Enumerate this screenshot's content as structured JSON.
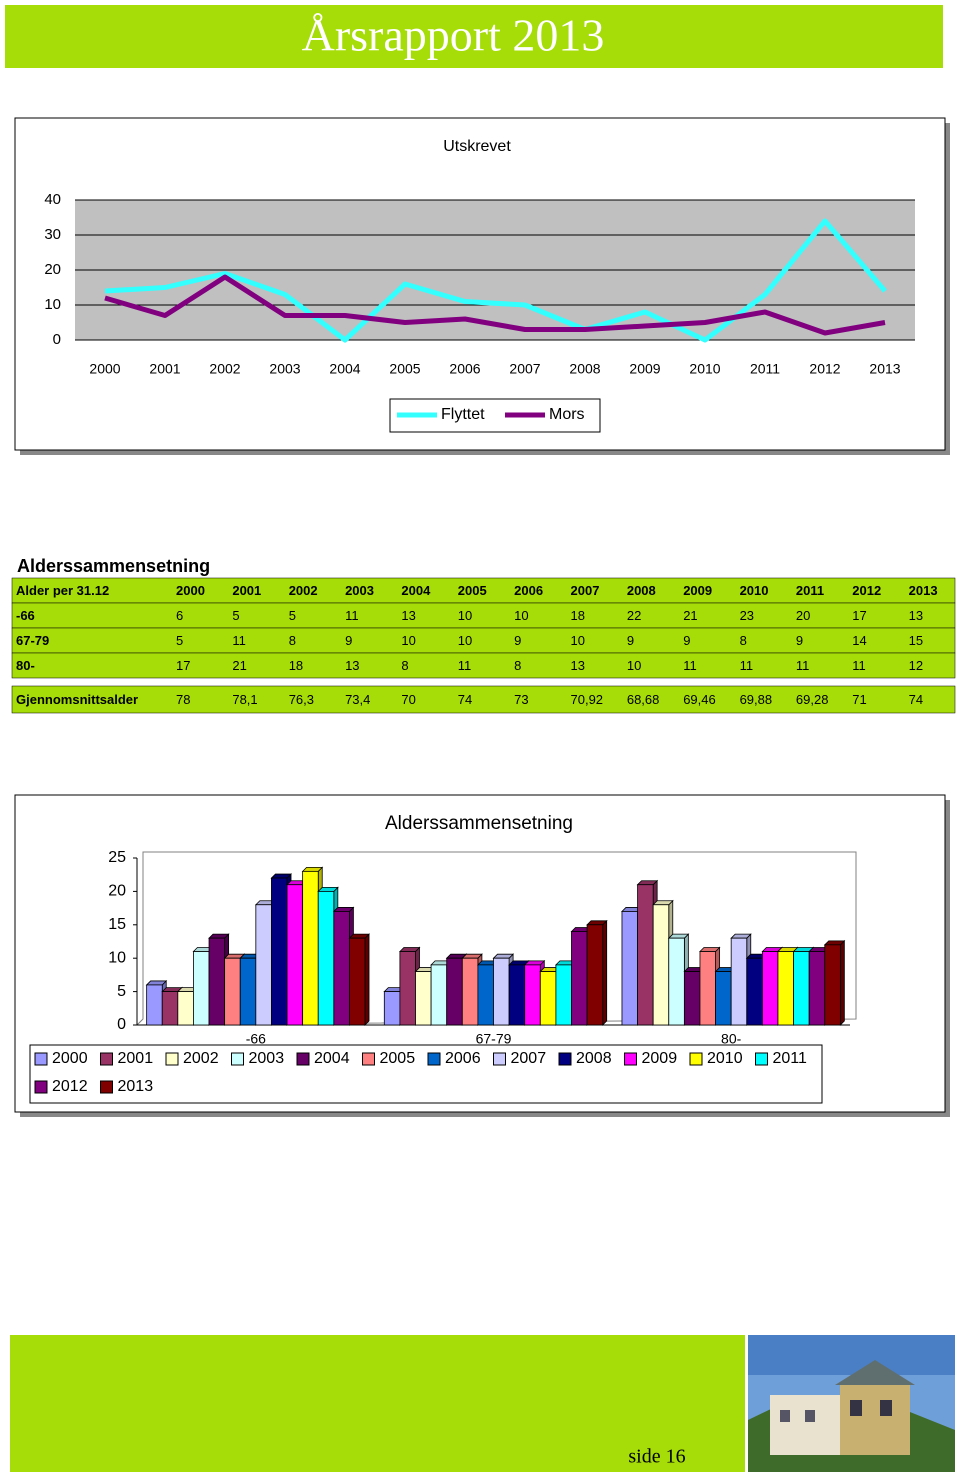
{
  "header": {
    "title": "Årsrapport 2013"
  },
  "chart_data": [
    {
      "type": "line",
      "title": "Utskrevet",
      "categories": [
        "2000",
        "2001",
        "2002",
        "2003",
        "2004",
        "2005",
        "2006",
        "2007",
        "2008",
        "2009",
        "2010",
        "2011",
        "2012",
        "2013"
      ],
      "series": [
        {
          "name": "Flyttet",
          "color": "#33ffff",
          "values": [
            14,
            15,
            19,
            13,
            0,
            16,
            11,
            10,
            3,
            8,
            0,
            13,
            34,
            14
          ]
        },
        {
          "name": "Mors",
          "color": "#800080",
          "values": [
            12,
            7,
            18,
            7,
            7,
            5,
            6,
            3,
            3,
            4,
            5,
            8,
            2,
            5
          ]
        }
      ],
      "ylim": [
        0,
        40
      ],
      "yticks": [
        0,
        10,
        20,
        30,
        40
      ],
      "grid": true,
      "legend": "bottom"
    },
    {
      "type": "bar3d",
      "title": "Alderssammensetning",
      "categories": [
        "-66",
        "67-79",
        "80-"
      ],
      "series": [
        {
          "name": "2000",
          "color": "#9999ff",
          "values": [
            6,
            5,
            17
          ]
        },
        {
          "name": "2001",
          "color": "#993366",
          "values": [
            5,
            11,
            21
          ]
        },
        {
          "name": "2002",
          "color": "#ffffcc",
          "values": [
            5,
            8,
            18
          ]
        },
        {
          "name": "2003",
          "color": "#ccffff",
          "values": [
            11,
            9,
            13
          ]
        },
        {
          "name": "2004",
          "color": "#660066",
          "values": [
            13,
            10,
            8
          ]
        },
        {
          "name": "2005",
          "color": "#ff8080",
          "values": [
            10,
            10,
            11
          ]
        },
        {
          "name": "2006",
          "color": "#0066cc",
          "values": [
            10,
            9,
            8
          ]
        },
        {
          "name": "2007",
          "color": "#ccccff",
          "values": [
            18,
            10,
            13
          ]
        },
        {
          "name": "2008",
          "color": "#000080",
          "values": [
            22,
            9,
            10
          ]
        },
        {
          "name": "2009",
          "color": "#ff00ff",
          "values": [
            21,
            9,
            11
          ]
        },
        {
          "name": "2010",
          "color": "#ffff00",
          "values": [
            23,
            8,
            11
          ]
        },
        {
          "name": "2011",
          "color": "#00ffff",
          "values": [
            20,
            9,
            11
          ]
        },
        {
          "name": "2012",
          "color": "#800080",
          "values": [
            17,
            14,
            11
          ]
        },
        {
          "name": "2013",
          "color": "#800000",
          "values": [
            13,
            15,
            12
          ]
        }
      ],
      "ylim": [
        0,
        25
      ],
      "yticks": [
        0,
        5,
        10,
        15,
        20,
        25
      ],
      "legend": "bottom"
    }
  ],
  "table": {
    "title": "Alderssammensetning",
    "header": [
      "Alder per 31.12",
      "2000",
      "2001",
      "2002",
      "2003",
      "2004",
      "2005",
      "2006",
      "2007",
      "2008",
      "2009",
      "2010",
      "2011",
      "2012",
      "2013"
    ],
    "rows": [
      [
        "-66",
        "6",
        "5",
        "5",
        "11",
        "13",
        "10",
        "10",
        "18",
        "22",
        "21",
        "23",
        "20",
        "17",
        "13"
      ],
      [
        "67-79",
        "5",
        "11",
        "8",
        "9",
        "10",
        "10",
        "9",
        "10",
        "9",
        "9",
        "8",
        "9",
        "14",
        "15"
      ],
      [
        "80-",
        "17",
        "21",
        "18",
        "13",
        "8",
        "11",
        "8",
        "13",
        "10",
        "11",
        "11",
        "11",
        "11",
        "12"
      ],
      [
        "Gjennomsnittsalder",
        "78",
        "78,1",
        "76,3",
        "73,4",
        "70",
        "74",
        "73",
        "70,92",
        "68,68",
        "69,46",
        "69,88",
        "69,28",
        "71",
        "74"
      ]
    ]
  },
  "footer": {
    "page": "side 16"
  }
}
